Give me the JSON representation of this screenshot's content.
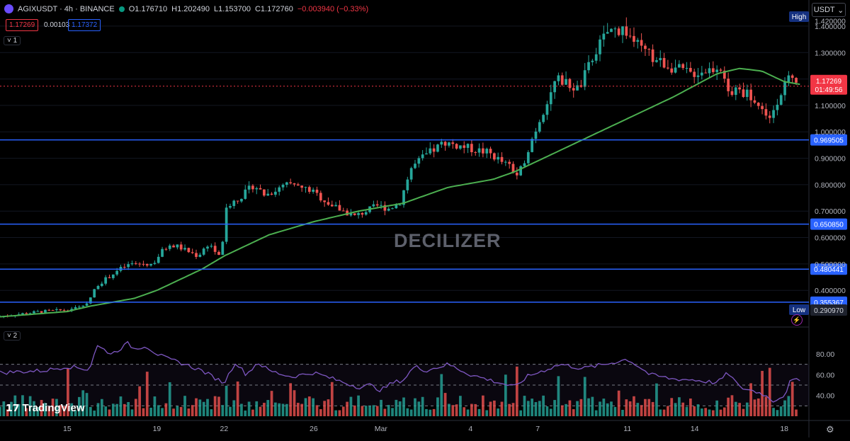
{
  "header": {
    "symbol": "AGIXUSDT · 4h · BINANCE",
    "open": "O1.176710",
    "high": "H1.202490",
    "low": "L1.153700",
    "close": "C1.172760",
    "change": "−0.003940 (−0.33%)",
    "bid": "1.17269",
    "spread": "0.00103",
    "ask": "1.17372"
  },
  "pane_tags": [
    "1",
    "2"
  ],
  "currency": "USDT",
  "watermark": "DECILIZER",
  "brand": "TradingView",
  "colors": {
    "up": "#26a69a",
    "down": "#ef5350",
    "ma": "#4caf50",
    "level": "#2962ff",
    "rsi": "#7e57c2",
    "price_line": "#f23645"
  },
  "chart_data": {
    "type": "candlestick",
    "x_tick_labels": [
      {
        "label": "15",
        "day": 15
      },
      {
        "label": "19",
        "day": 19
      },
      {
        "label": "22",
        "day": 22
      },
      {
        "label": "26",
        "day": 26
      },
      {
        "label": "Mar",
        "day": 29
      },
      {
        "label": "4",
        "day": 33
      },
      {
        "label": "7",
        "day": 36
      },
      {
        "label": "11",
        "day": 40
      },
      {
        "label": "14",
        "day": 43
      },
      {
        "label": "18",
        "day": 47
      }
    ],
    "y_ticks": [
      "1.400000",
      "1.300000",
      "1.200000",
      "1.100000",
      "1.000000",
      "0.900000",
      "0.800000",
      "0.700000",
      "0.600000",
      "0.500000",
      "0.400000"
    ],
    "y_top_label": "1.420000",
    "high_label": "High",
    "low_label": "Low",
    "low_value": "0.290970",
    "current_price_label": "1.17269",
    "countdown": "01:49:56",
    "levels": [
      {
        "value": 0.969505,
        "label": "0.969505"
      },
      {
        "value": 0.65085,
        "label": "0.650850"
      },
      {
        "value": 0.480441,
        "label": "0.480441"
      },
      {
        "value": 0.355367,
        "label": "0.355367"
      }
    ],
    "anchors": [
      [
        12,
        0.3
      ],
      [
        13,
        0.31
      ],
      [
        14,
        0.32
      ],
      [
        15,
        0.325
      ],
      [
        16,
        0.34
      ],
      [
        16.5,
        0.42
      ],
      [
        17,
        0.45
      ],
      [
        17.5,
        0.48
      ],
      [
        18,
        0.5
      ],
      [
        19,
        0.5
      ],
      [
        19.5,
        0.56
      ],
      [
        20,
        0.57
      ],
      [
        21,
        0.53
      ],
      [
        21.5,
        0.58
      ],
      [
        22,
        0.52
      ],
      [
        22.3,
        0.72
      ],
      [
        23,
        0.76
      ],
      [
        23.5,
        0.8
      ],
      [
        24,
        0.76
      ],
      [
        25,
        0.8
      ],
      [
        26,
        0.78
      ],
      [
        26.5,
        0.75
      ],
      [
        27,
        0.72
      ],
      [
        28,
        0.68
      ],
      [
        28.5,
        0.7
      ],
      [
        29,
        0.72
      ],
      [
        29.5,
        0.71
      ],
      [
        30,
        0.73
      ],
      [
        30.5,
        0.86
      ],
      [
        31,
        0.9
      ],
      [
        32,
        0.96
      ],
      [
        33,
        0.94
      ],
      [
        34,
        0.92
      ],
      [
        35,
        0.86
      ],
      [
        35.3,
        0.83
      ],
      [
        35.8,
        0.95
      ],
      [
        36.5,
        1.1
      ],
      [
        37,
        1.2
      ],
      [
        37.5,
        1.18
      ],
      [
        38,
        1.16
      ],
      [
        38.7,
        1.3
      ],
      [
        39.3,
        1.38
      ],
      [
        40,
        1.39
      ],
      [
        40.7,
        1.32
      ],
      [
        41.3,
        1.28
      ],
      [
        42,
        1.25
      ],
      [
        43,
        1.22
      ],
      [
        44,
        1.24
      ],
      [
        44.3,
        1.26
      ],
      [
        44.6,
        1.15
      ],
      [
        45.5,
        1.15
      ],
      [
        46,
        1.1
      ],
      [
        46.5,
        1.05
      ],
      [
        47,
        1.15
      ],
      [
        47.3,
        1.2
      ],
      [
        47.7,
        1.173
      ]
    ],
    "ma_anchors": [
      [
        12,
        0.3
      ],
      [
        15,
        0.32
      ],
      [
        16,
        0.34
      ],
      [
        18,
        0.37
      ],
      [
        19,
        0.4
      ],
      [
        21,
        0.48
      ],
      [
        22,
        0.53
      ],
      [
        24,
        0.61
      ],
      [
        26,
        0.66
      ],
      [
        28,
        0.7
      ],
      [
        30,
        0.73
      ],
      [
        32,
        0.79
      ],
      [
        34,
        0.82
      ],
      [
        35,
        0.85
      ],
      [
        36,
        0.89
      ],
      [
        38,
        0.97
      ],
      [
        40,
        1.05
      ],
      [
        42,
        1.13
      ],
      [
        44,
        1.22
      ],
      [
        45,
        1.24
      ],
      [
        46,
        1.23
      ],
      [
        47,
        1.19
      ],
      [
        47.7,
        1.18
      ]
    ],
    "rsi_ticks": [
      "80.00",
      "60.00",
      "40.00"
    ],
    "rsi_bands": [
      70,
      50,
      30
    ],
    "rsi_anchors": [
      [
        12,
        62
      ],
      [
        14,
        64
      ],
      [
        15,
        68
      ],
      [
        16,
        65
      ],
      [
        16.3,
        88
      ],
      [
        17,
        80
      ],
      [
        17.7,
        90
      ],
      [
        18,
        85
      ],
      [
        18.5,
        88
      ],
      [
        19,
        80
      ],
      [
        19.5,
        75
      ],
      [
        20,
        72
      ],
      [
        21,
        64
      ],
      [
        22,
        52
      ],
      [
        22.5,
        72
      ],
      [
        23,
        60
      ],
      [
        23.5,
        72
      ],
      [
        24,
        64
      ],
      [
        25,
        58
      ],
      [
        26,
        62
      ],
      [
        27,
        55
      ],
      [
        28,
        48
      ],
      [
        28.5,
        50
      ],
      [
        29,
        45
      ],
      [
        29.5,
        52
      ],
      [
        30,
        55
      ],
      [
        30.5,
        68
      ],
      [
        31,
        64
      ],
      [
        32,
        70
      ],
      [
        33,
        60
      ],
      [
        34,
        54
      ],
      [
        35,
        48
      ],
      [
        35.5,
        58
      ],
      [
        36,
        62
      ],
      [
        37,
        70
      ],
      [
        38,
        66
      ],
      [
        39,
        70
      ],
      [
        40,
        75
      ],
      [
        40.5,
        68
      ],
      [
        41,
        60
      ],
      [
        42,
        56
      ],
      [
        43,
        55
      ],
      [
        44,
        52
      ],
      [
        44.5,
        62
      ],
      [
        45,
        48
      ],
      [
        46,
        42
      ],
      [
        46.5,
        35
      ],
      [
        47,
        40
      ],
      [
        47.3,
        55
      ],
      [
        47.7,
        54
      ]
    ]
  }
}
